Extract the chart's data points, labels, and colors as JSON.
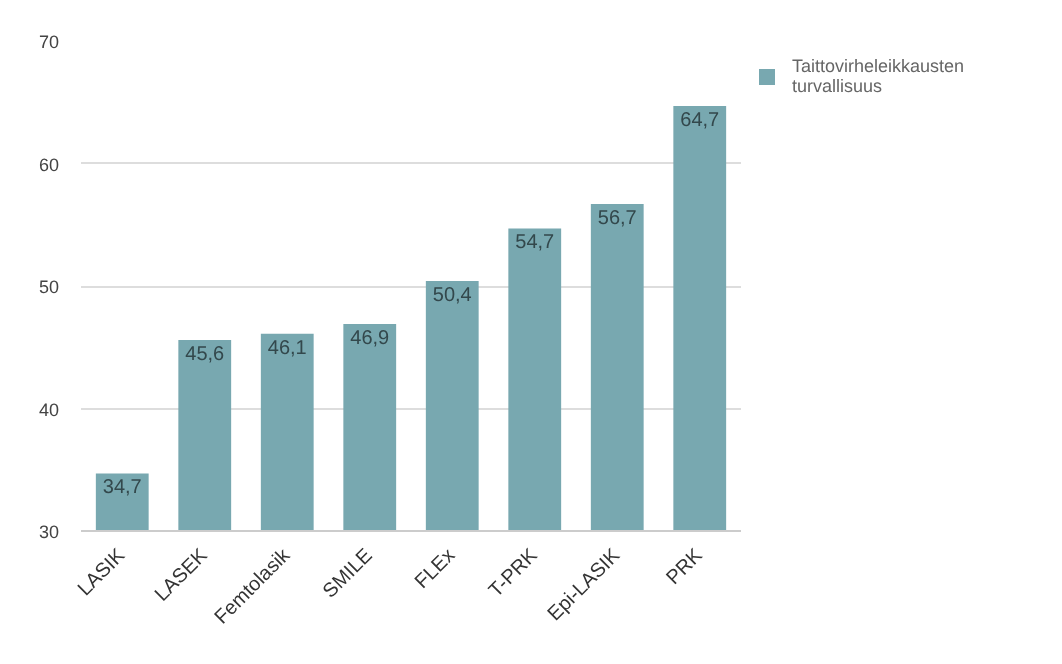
{
  "chart_data": {
    "type": "bar",
    "categories": [
      "LASIK",
      "LASEK",
      "Femtolasik",
      "SMILE",
      "FLEx",
      "T-PRK",
      "Epi-LASIK",
      "PRK"
    ],
    "series": [
      {
        "name": "Taittovirheleikkausten turvallisuus",
        "color": "#78a8b0",
        "values": [
          34.7,
          45.6,
          46.1,
          46.9,
          50.4,
          54.7,
          56.7,
          64.7
        ],
        "value_labels": [
          "34,7",
          "45,6",
          "46,1",
          "46,9",
          "50,4",
          "54,7",
          "56,7",
          "64,7"
        ]
      }
    ],
    "ylim": [
      30,
      70
    ],
    "yticks": [
      30,
      40,
      50,
      60,
      70
    ],
    "grid": "y",
    "legend": "top right"
  }
}
